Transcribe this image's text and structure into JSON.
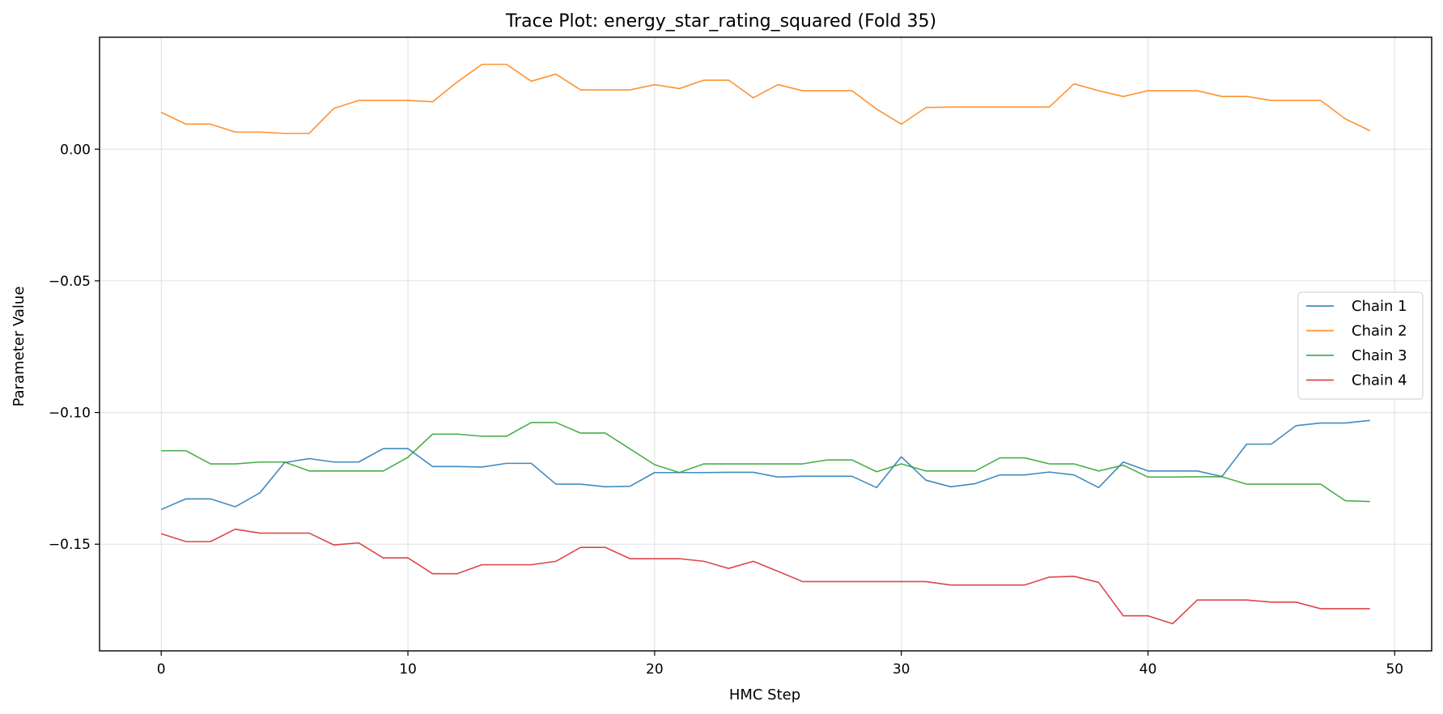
{
  "chart_data": {
    "type": "line",
    "title": "Trace Plot: energy_star_rating_squared (Fold 35)",
    "xlabel": "HMC Step",
    "ylabel": "Parameter Value",
    "xlim": [
      -2.5,
      51.5
    ],
    "ylim": [
      -0.1905,
      0.0425
    ],
    "xticks": [
      0,
      10,
      20,
      30,
      40,
      50
    ],
    "xtick_labels": [
      "0",
      "10",
      "20",
      "30",
      "40",
      "50"
    ],
    "yticks": [
      0.0,
      -0.05,
      -0.1,
      -0.15
    ],
    "ytick_labels": [
      "0.00",
      "−0.05",
      "−0.10",
      "−0.15"
    ],
    "grid": true,
    "legend_position": "center-right",
    "x": [
      0,
      1,
      2,
      3,
      4,
      5,
      6,
      7,
      8,
      9,
      10,
      11,
      12,
      13,
      14,
      15,
      16,
      17,
      18,
      19,
      20,
      21,
      22,
      23,
      24,
      25,
      26,
      27,
      28,
      29,
      30,
      31,
      32,
      33,
      34,
      35,
      36,
      37,
      38,
      39,
      40,
      41,
      42,
      43,
      44,
      45,
      46,
      47,
      48,
      49
    ],
    "series": [
      {
        "name": "Chain 1",
        "color": "#1f77b4",
        "values": [
          -0.1368,
          -0.1328,
          -0.1328,
          -0.1358,
          -0.1305,
          -0.119,
          -0.1175,
          -0.1188,
          -0.1188,
          -0.1137,
          -0.1137,
          -0.1205,
          -0.1205,
          -0.1207,
          -0.1193,
          -0.1193,
          -0.1272,
          -0.1272,
          -0.1282,
          -0.128,
          -0.1228,
          -0.1228,
          -0.1228,
          -0.1227,
          -0.1227,
          -0.1245,
          -0.1242,
          -0.1242,
          -0.1242,
          -0.1285,
          -0.1168,
          -0.1257,
          -0.1282,
          -0.127,
          -0.1237,
          -0.1237,
          -0.1226,
          -0.1237,
          -0.1285,
          -0.1188,
          -0.1222,
          -0.1222,
          -0.1222,
          -0.1243,
          -0.112,
          -0.112,
          -0.105,
          -0.104,
          -0.104,
          -0.103
        ]
      },
      {
        "name": "Chain 2",
        "color": "#ff7f0e",
        "values": [
          0.014,
          0.0095,
          0.0095,
          0.0065,
          0.0065,
          0.006,
          0.006,
          0.0155,
          0.0185,
          0.0185,
          0.0185,
          0.018,
          0.0255,
          0.0322,
          0.0322,
          0.0258,
          0.0285,
          0.0225,
          0.0225,
          0.0225,
          0.0245,
          0.023,
          0.0262,
          0.0262,
          0.0195,
          0.0245,
          0.0222,
          0.0222,
          0.0222,
          0.0152,
          0.0095,
          0.0158,
          0.016,
          0.016,
          0.016,
          0.016,
          0.016,
          0.0248,
          0.0222,
          0.02,
          0.0222,
          0.0222,
          0.0222,
          0.02,
          0.02,
          0.0185,
          0.0185,
          0.0185,
          0.0115,
          0.007
        ]
      },
      {
        "name": "Chain 3",
        "color": "#2ca02c",
        "values": [
          -0.1145,
          -0.1145,
          -0.1195,
          -0.1195,
          -0.1188,
          -0.1188,
          -0.1222,
          -0.1222,
          -0.1222,
          -0.1222,
          -0.117,
          -0.1082,
          -0.1082,
          -0.109,
          -0.109,
          -0.1038,
          -0.1038,
          -0.1078,
          -0.1078,
          -0.1138,
          -0.1198,
          -0.1228,
          -0.1195,
          -0.1195,
          -0.1195,
          -0.1195,
          -0.1195,
          -0.118,
          -0.118,
          -0.1225,
          -0.1195,
          -0.1222,
          -0.1222,
          -0.1222,
          -0.1172,
          -0.1172,
          -0.1195,
          -0.1195,
          -0.1222,
          -0.12,
          -0.1245,
          -0.1245,
          -0.1244,
          -0.1244,
          -0.1272,
          -0.1272,
          -0.1272,
          -0.1272,
          -0.1335,
          -0.1338
        ]
      },
      {
        "name": "Chain 4",
        "color": "#d62728",
        "values": [
          -0.146,
          -0.149,
          -0.149,
          -0.1443,
          -0.1458,
          -0.1458,
          -0.1458,
          -0.1503,
          -0.1495,
          -0.1552,
          -0.1552,
          -0.1612,
          -0.1612,
          -0.1578,
          -0.1578,
          -0.1578,
          -0.1565,
          -0.1512,
          -0.1512,
          -0.1555,
          -0.1555,
          -0.1555,
          -0.1565,
          -0.1592,
          -0.1565,
          -0.1603,
          -0.1642,
          -0.1642,
          -0.1642,
          -0.1642,
          -0.1642,
          -0.1642,
          -0.1655,
          -0.1655,
          -0.1655,
          -0.1655,
          -0.1625,
          -0.1622,
          -0.1645,
          -0.1772,
          -0.1772,
          -0.1802,
          -0.1712,
          -0.1712,
          -0.1712,
          -0.172,
          -0.172,
          -0.1745,
          -0.1745,
          -0.1745
        ]
      }
    ]
  }
}
